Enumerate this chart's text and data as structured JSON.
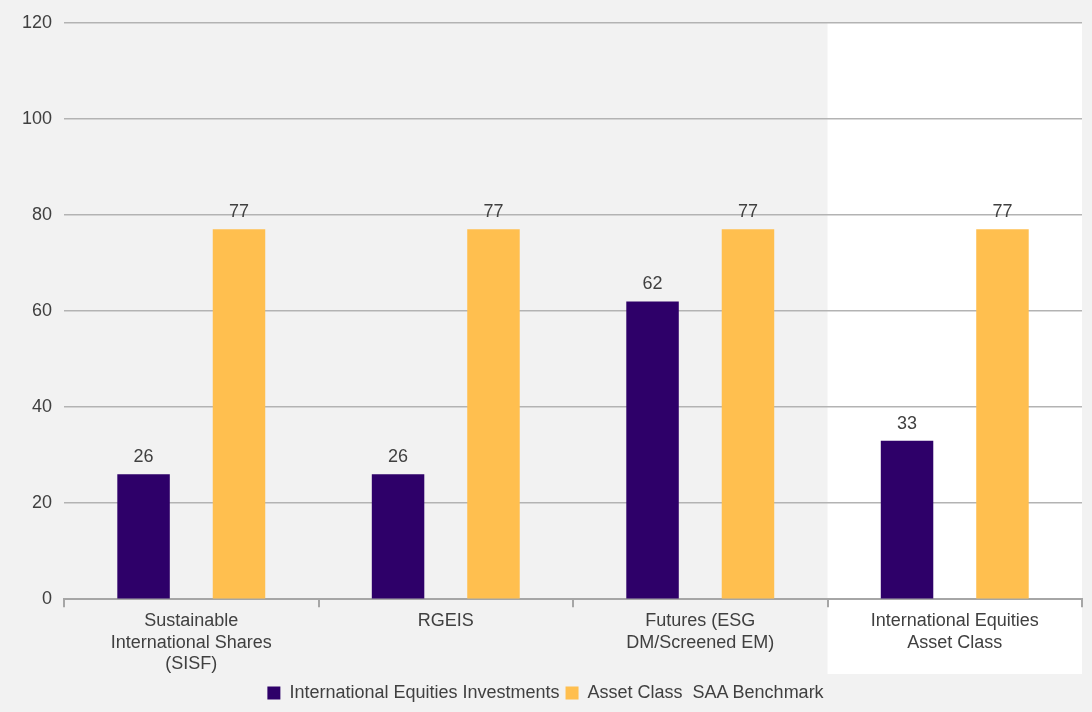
{
  "chart_data": {
    "type": "bar",
    "categories": [
      "Sustainable International Shares (SISF)",
      "RGEIS",
      "Futures (ESG DM/Screened EM)",
      "International Equities Asset Class"
    ],
    "series": [
      {
        "name": "International Equities Investments",
        "color": "#2e0069",
        "values": [
          26,
          26,
          62,
          33
        ]
      },
      {
        "name": "Asset Class  SAA Benchmark",
        "color": "#ffbf4f",
        "values": [
          77,
          77,
          77,
          77
        ]
      }
    ],
    "ylim": [
      0,
      120
    ],
    "yticks": [
      0,
      20,
      40,
      60,
      80,
      100,
      120
    ],
    "grid": "y",
    "legend": "bottom",
    "data_labels": true,
    "bands": [
      {
        "axis": "x",
        "from": "International Equities Asset Class",
        "to": "International Equities Asset Class",
        "color": "#ffffff"
      }
    ]
  }
}
